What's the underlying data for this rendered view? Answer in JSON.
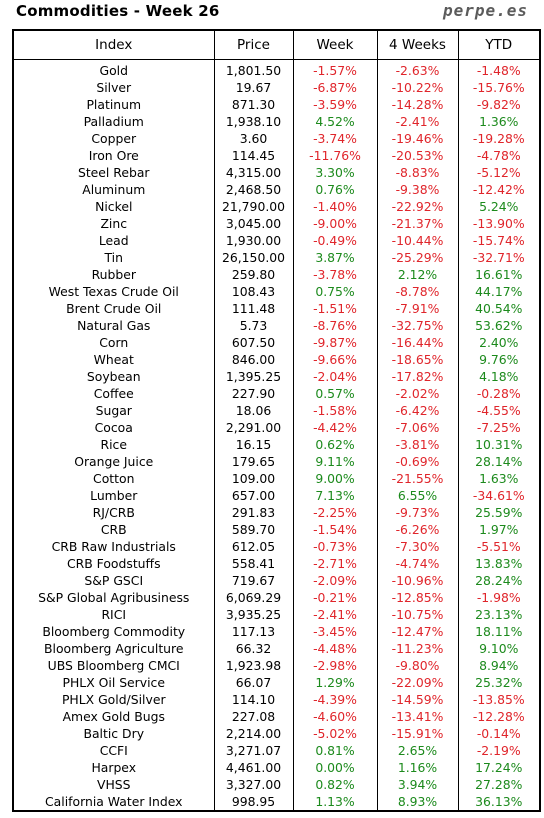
{
  "header": {
    "title": "Commodities - Week 26",
    "brand": "perpe.es"
  },
  "columns": [
    "Index",
    "Price",
    "Week",
    "4 Weeks",
    "YTD"
  ],
  "colors": {
    "positive": "#1c8a1c",
    "negative": "#e0252b"
  },
  "rows": [
    {
      "index": "Gold",
      "price": "1,801.50",
      "week": "-1.57%",
      "w4": "-2.63%",
      "ytd": "-1.48%"
    },
    {
      "index": "Silver",
      "price": "19.67",
      "week": "-6.87%",
      "w4": "-10.22%",
      "ytd": "-15.76%"
    },
    {
      "index": "Platinum",
      "price": "871.30",
      "week": "-3.59%",
      "w4": "-14.28%",
      "ytd": "-9.82%"
    },
    {
      "index": "Palladium",
      "price": "1,938.10",
      "week": "4.52%",
      "w4": "-2.41%",
      "ytd": "1.36%"
    },
    {
      "index": "Copper",
      "price": "3.60",
      "week": "-3.74%",
      "w4": "-19.46%",
      "ytd": "-19.28%"
    },
    {
      "index": "Iron Ore",
      "price": "114.45",
      "week": "-11.76%",
      "w4": "-20.53%",
      "ytd": "-4.78%"
    },
    {
      "index": "Steel Rebar",
      "price": "4,315.00",
      "week": "3.30%",
      "w4": "-8.83%",
      "ytd": "-5.12%"
    },
    {
      "index": "Aluminum",
      "price": "2,468.50",
      "week": "0.76%",
      "w4": "-9.38%",
      "ytd": "-12.42%"
    },
    {
      "index": "Nickel",
      "price": "21,790.00",
      "week": "-1.40%",
      "w4": "-22.92%",
      "ytd": "5.24%"
    },
    {
      "index": "Zinc",
      "price": "3,045.00",
      "week": "-9.00%",
      "w4": "-21.37%",
      "ytd": "-13.90%"
    },
    {
      "index": "Lead",
      "price": "1,930.00",
      "week": "-0.49%",
      "w4": "-10.44%",
      "ytd": "-15.74%"
    },
    {
      "index": "Tin",
      "price": "26,150.00",
      "week": "3.87%",
      "w4": "-25.29%",
      "ytd": "-32.71%"
    },
    {
      "index": "Rubber",
      "price": "259.80",
      "week": "-3.78%",
      "w4": "2.12%",
      "ytd": "16.61%"
    },
    {
      "index": "West Texas Crude Oil",
      "price": "108.43",
      "week": "0.75%",
      "w4": "-8.78%",
      "ytd": "44.17%"
    },
    {
      "index": "Brent Crude Oil",
      "price": "111.48",
      "week": "-1.51%",
      "w4": "-7.91%",
      "ytd": "40.54%"
    },
    {
      "index": "Natural Gas",
      "price": "5.73",
      "week": "-8.76%",
      "w4": "-32.75%",
      "ytd": "53.62%"
    },
    {
      "index": "Corn",
      "price": "607.50",
      "week": "-9.87%",
      "w4": "-16.44%",
      "ytd": "2.40%"
    },
    {
      "index": "Wheat",
      "price": "846.00",
      "week": "-9.66%",
      "w4": "-18.65%",
      "ytd": "9.76%"
    },
    {
      "index": "Soybean",
      "price": "1,395.25",
      "week": "-2.04%",
      "w4": "-17.82%",
      "ytd": "4.18%"
    },
    {
      "index": "Coffee",
      "price": "227.90",
      "week": "0.57%",
      "w4": "-2.02%",
      "ytd": "-0.28%"
    },
    {
      "index": "Sugar",
      "price": "18.06",
      "week": "-1.58%",
      "w4": "-6.42%",
      "ytd": "-4.55%"
    },
    {
      "index": "Cocoa",
      "price": "2,291.00",
      "week": "-4.42%",
      "w4": "-7.06%",
      "ytd": "-7.25%"
    },
    {
      "index": "Rice",
      "price": "16.15",
      "week": "0.62%",
      "w4": "-3.81%",
      "ytd": "10.31%"
    },
    {
      "index": "Orange Juice",
      "price": "179.65",
      "week": "9.11%",
      "w4": "-0.69%",
      "ytd": "28.14%"
    },
    {
      "index": "Cotton",
      "price": "109.00",
      "week": "9.00%",
      "w4": "-21.55%",
      "ytd": "1.63%"
    },
    {
      "index": "Lumber",
      "price": "657.00",
      "week": "7.13%",
      "w4": "6.55%",
      "ytd": "-34.61%"
    },
    {
      "index": "RJ/CRB",
      "price": "291.83",
      "week": "-2.25%",
      "w4": "-9.73%",
      "ytd": "25.59%"
    },
    {
      "index": "CRB",
      "price": "589.70",
      "week": "-1.54%",
      "w4": "-6.26%",
      "ytd": "1.97%"
    },
    {
      "index": "CRB Raw Industrials",
      "price": "612.05",
      "week": "-0.73%",
      "w4": "-7.30%",
      "ytd": "-5.51%"
    },
    {
      "index": "CRB Foodstuffs",
      "price": "558.41",
      "week": "-2.71%",
      "w4": "-4.74%",
      "ytd": "13.83%"
    },
    {
      "index": "S&P GSCI",
      "price": "719.67",
      "week": "-2.09%",
      "w4": "-10.96%",
      "ytd": "28.24%"
    },
    {
      "index": "S&P Global Agribusiness",
      "price": "6,069.29",
      "week": "-0.21%",
      "w4": "-12.85%",
      "ytd": "-1.98%"
    },
    {
      "index": "RICI",
      "price": "3,935.25",
      "week": "-2.41%",
      "w4": "-10.75%",
      "ytd": "23.13%"
    },
    {
      "index": "Bloomberg Commodity",
      "price": "117.13",
      "week": "-3.45%",
      "w4": "-12.47%",
      "ytd": "18.11%"
    },
    {
      "index": "Bloomberg Agriculture",
      "price": "66.32",
      "week": "-4.48%",
      "w4": "-11.23%",
      "ytd": "9.10%"
    },
    {
      "index": "UBS Bloomberg CMCI",
      "price": "1,923.98",
      "week": "-2.98%",
      "w4": "-9.80%",
      "ytd": "8.94%"
    },
    {
      "index": "PHLX Oil Service",
      "price": "66.07",
      "week": "1.29%",
      "w4": "-22.09%",
      "ytd": "25.32%"
    },
    {
      "index": "PHLX Gold/Silver",
      "price": "114.10",
      "week": "-4.39%",
      "w4": "-14.59%",
      "ytd": "-13.85%"
    },
    {
      "index": "Amex Gold Bugs",
      "price": "227.08",
      "week": "-4.60%",
      "w4": "-13.41%",
      "ytd": "-12.28%"
    },
    {
      "index": "Baltic Dry",
      "price": "2,214.00",
      "week": "-5.02%",
      "w4": "-15.91%",
      "ytd": "-0.14%"
    },
    {
      "index": "CCFI",
      "price": "3,271.07",
      "week": "0.81%",
      "w4": "2.65%",
      "ytd": "-2.19%"
    },
    {
      "index": "Harpex",
      "price": "4,461.00",
      "week": "0.00%",
      "w4": "1.16%",
      "ytd": "17.24%"
    },
    {
      "index": "VHSS",
      "price": "3,327.00",
      "week": "0.82%",
      "w4": "3.94%",
      "ytd": "27.28%"
    },
    {
      "index": "California Water Index",
      "price": "998.95",
      "week": "1.13%",
      "w4": "8.93%",
      "ytd": "36.13%"
    }
  ]
}
